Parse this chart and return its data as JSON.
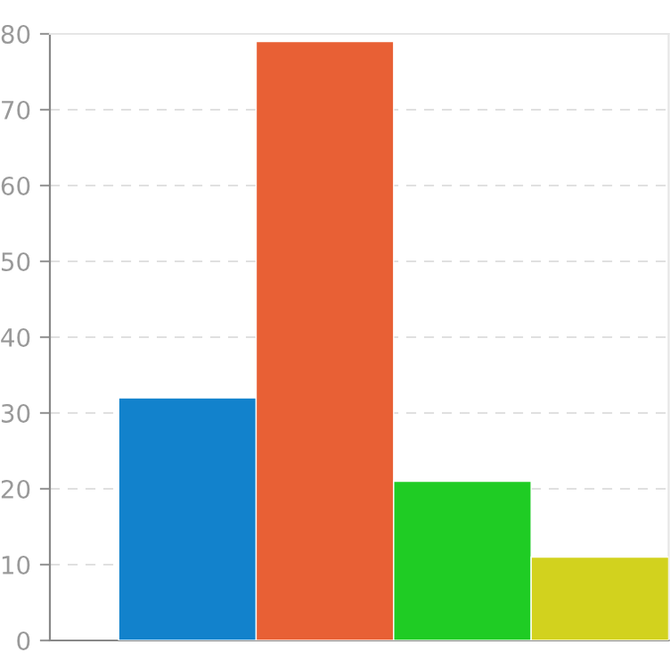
{
  "chart_data": {
    "type": "bar",
    "categories": [
      null,
      null,
      null,
      null
    ],
    "values": [
      32,
      79,
      21,
      11
    ],
    "colors": [
      "#1282cc",
      "#e86035",
      "#1fcc24",
      "#d2d21e"
    ],
    "ylim": [
      0,
      80
    ],
    "yticks": [
      0,
      10,
      20,
      30,
      40,
      50,
      60,
      70,
      80
    ],
    "grid": "y",
    "tick_labels": "y"
  }
}
